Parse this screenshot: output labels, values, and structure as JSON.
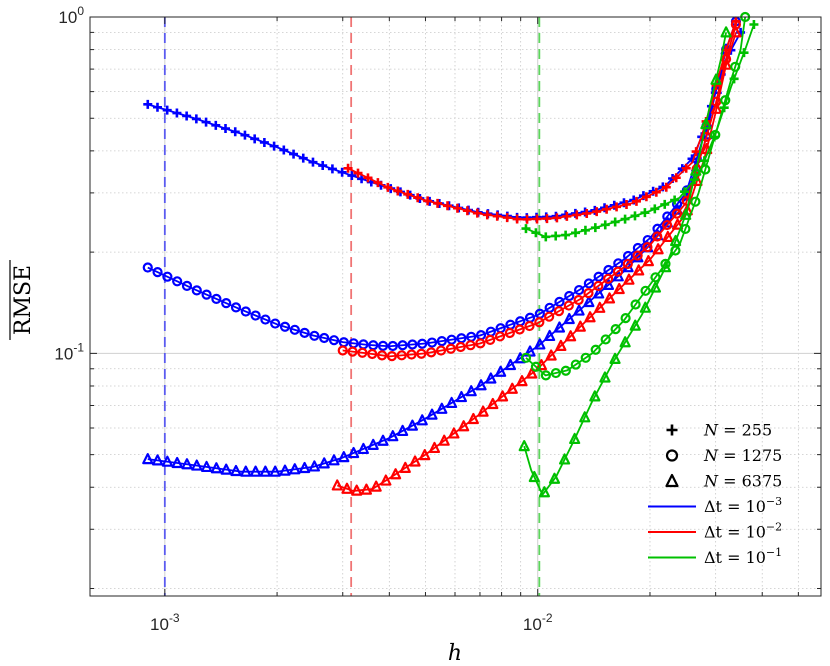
{
  "chart_data": {
    "type": "line",
    "xscale": "log",
    "yscale": "log",
    "xlabel": "h",
    "ylabel": "RMSE",
    "ylabel_overline": true,
    "xlim": [
      0.00063,
      0.0575
    ],
    "ylim": [
      0.019,
      1.0
    ],
    "grid": true,
    "grid_style": "dotted",
    "legend_position": "lower-right",
    "x_ticks": [
      {
        "value": 0.001,
        "base": "10",
        "exp": "-3"
      },
      {
        "value": 0.01,
        "base": "10",
        "exp": "-2"
      }
    ],
    "y_ticks": [
      {
        "value": 0.1,
        "base": "10",
        "exp": "-1"
      },
      {
        "value": 1,
        "base": "10",
        "exp": "0"
      }
    ],
    "reference_lines": [
      {
        "x": 0.001,
        "color": "#5b5bf0",
        "style": "dashed"
      },
      {
        "x": 0.00316,
        "color": "#f07474",
        "style": "dashed"
      },
      {
        "x": 0.0101,
        "color": "#5cd65c",
        "style": "dashed"
      }
    ],
    "colors": {
      "dt_1e-3": "#0000ff",
      "dt_1e-2": "#ff0000",
      "dt_1e-1": "#00c000"
    },
    "legend": [
      {
        "kind": "marker",
        "marker": "plus",
        "label_var": "N",
        "label_rest": " = 255"
      },
      {
        "kind": "marker",
        "marker": "circle",
        "label_var": "N",
        "label_rest": " = 1275"
      },
      {
        "kind": "marker",
        "marker": "triangle",
        "label_var": "N",
        "label_rest": " = 6375"
      },
      {
        "kind": "line",
        "color": "#0000ff",
        "label_var": "Δt",
        "label_rest": " = 10",
        "label_exp": "−3"
      },
      {
        "kind": "line",
        "color": "#ff0000",
        "label_var": "Δt",
        "label_rest": " = 10",
        "label_exp": "−2"
      },
      {
        "kind": "line",
        "color": "#00c000",
        "label_var": "Δt",
        "label_rest": " = 10",
        "label_exp": "−1"
      }
    ],
    "series": [
      {
        "dt": "1e-3",
        "N": 255,
        "marker": "plus",
        "color": "#0000ff",
        "points": [
          [
            0.0009,
            0.55
          ],
          [
            0.0012,
            0.5
          ],
          [
            0.0016,
            0.45
          ],
          [
            0.002,
            0.41
          ],
          [
            0.0025,
            0.37
          ],
          [
            0.003,
            0.345
          ],
          [
            0.004,
            0.31
          ],
          [
            0.005,
            0.285
          ],
          [
            0.007,
            0.262
          ],
          [
            0.009,
            0.253
          ],
          [
            0.011,
            0.255
          ],
          [
            0.014,
            0.265
          ],
          [
            0.018,
            0.285
          ],
          [
            0.022,
            0.315
          ],
          [
            0.026,
            0.38
          ],
          [
            0.028,
            0.46
          ],
          [
            0.03,
            0.6
          ],
          [
            0.032,
            0.75
          ],
          [
            0.035,
            0.9
          ]
        ]
      },
      {
        "dt": "1e-3",
        "N": 1275,
        "marker": "circle",
        "color": "#0000ff",
        "points": [
          [
            0.0009,
            0.18
          ],
          [
            0.0012,
            0.155
          ],
          [
            0.0016,
            0.135
          ],
          [
            0.002,
            0.122
          ],
          [
            0.0025,
            0.113
          ],
          [
            0.003,
            0.108
          ],
          [
            0.0035,
            0.106
          ],
          [
            0.004,
            0.105
          ],
          [
            0.005,
            0.107
          ],
          [
            0.007,
            0.113
          ],
          [
            0.01,
            0.13
          ],
          [
            0.013,
            0.155
          ],
          [
            0.017,
            0.19
          ],
          [
            0.02,
            0.22
          ],
          [
            0.025,
            0.3
          ],
          [
            0.028,
            0.45
          ],
          [
            0.03,
            0.6
          ],
          [
            0.032,
            0.8
          ],
          [
            0.034,
            0.97
          ]
        ]
      },
      {
        "dt": "1e-3",
        "N": 6375,
        "marker": "triangle",
        "color": "#0000ff",
        "points": [
          [
            0.0009,
            0.0485
          ],
          [
            0.0012,
            0.0465
          ],
          [
            0.0016,
            0.0445
          ],
          [
            0.002,
            0.0445
          ],
          [
            0.0025,
            0.046
          ],
          [
            0.003,
            0.049
          ],
          [
            0.004,
            0.056
          ],
          [
            0.005,
            0.064
          ],
          [
            0.007,
            0.08
          ],
          [
            0.01,
            0.105
          ],
          [
            0.013,
            0.135
          ],
          [
            0.017,
            0.175
          ],
          [
            0.02,
            0.21
          ],
          [
            0.025,
            0.29
          ],
          [
            0.028,
            0.42
          ],
          [
            0.03,
            0.6
          ],
          [
            0.032,
            0.8
          ]
        ]
      },
      {
        "dt": "1e-2",
        "N": 255,
        "marker": "plus",
        "color": "#ff0000",
        "points": [
          [
            0.0031,
            0.355
          ],
          [
            0.004,
            0.31
          ],
          [
            0.005,
            0.285
          ],
          [
            0.007,
            0.26
          ],
          [
            0.009,
            0.25
          ],
          [
            0.011,
            0.252
          ],
          [
            0.014,
            0.262
          ],
          [
            0.018,
            0.28
          ],
          [
            0.022,
            0.31
          ],
          [
            0.026,
            0.37
          ],
          [
            0.028,
            0.47
          ],
          [
            0.03,
            0.62
          ],
          [
            0.032,
            0.8
          ],
          [
            0.034,
            0.97
          ]
        ]
      },
      {
        "dt": "1e-2",
        "N": 1275,
        "marker": "circle",
        "color": "#ff0000",
        "points": [
          [
            0.003,
            0.102
          ],
          [
            0.0035,
            0.1
          ],
          [
            0.004,
            0.098
          ],
          [
            0.005,
            0.1
          ],
          [
            0.007,
            0.107
          ],
          [
            0.01,
            0.123
          ],
          [
            0.013,
            0.145
          ],
          [
            0.017,
            0.18
          ],
          [
            0.02,
            0.21
          ],
          [
            0.025,
            0.28
          ],
          [
            0.028,
            0.42
          ],
          [
            0.03,
            0.55
          ],
          [
            0.032,
            0.75
          ],
          [
            0.034,
            0.95
          ]
        ]
      },
      {
        "dt": "1e-2",
        "N": 6375,
        "marker": "triangle",
        "color": "#ff0000",
        "points": [
          [
            0.0029,
            0.0405
          ],
          [
            0.0032,
            0.039
          ],
          [
            0.0036,
            0.0395
          ],
          [
            0.004,
            0.0425
          ],
          [
            0.005,
            0.05
          ],
          [
            0.007,
            0.066
          ],
          [
            0.01,
            0.09
          ],
          [
            0.013,
            0.12
          ],
          [
            0.017,
            0.16
          ],
          [
            0.02,
            0.19
          ],
          [
            0.025,
            0.26
          ],
          [
            0.028,
            0.38
          ],
          [
            0.03,
            0.52
          ],
          [
            0.032,
            0.72
          ],
          [
            0.034,
            0.9
          ]
        ]
      },
      {
        "dt": "1e-1",
        "N": 255,
        "marker": "plus",
        "color": "#00c000",
        "points": [
          [
            0.0093,
            0.235
          ],
          [
            0.0105,
            0.222
          ],
          [
            0.012,
            0.225
          ],
          [
            0.014,
            0.235
          ],
          [
            0.017,
            0.25
          ],
          [
            0.02,
            0.265
          ],
          [
            0.024,
            0.29
          ],
          [
            0.027,
            0.34
          ],
          [
            0.03,
            0.45
          ],
          [
            0.033,
            0.62
          ],
          [
            0.036,
            0.8
          ],
          [
            0.038,
            0.95
          ]
        ]
      },
      {
        "dt": "1e-1",
        "N": 1275,
        "marker": "circle",
        "color": "#00c000",
        "points": [
          [
            0.0093,
            0.097
          ],
          [
            0.0105,
            0.086
          ],
          [
            0.012,
            0.089
          ],
          [
            0.014,
            0.1
          ],
          [
            0.017,
            0.125
          ],
          [
            0.02,
            0.16
          ],
          [
            0.024,
            0.21
          ],
          [
            0.027,
            0.3
          ],
          [
            0.03,
            0.45
          ],
          [
            0.033,
            0.65
          ],
          [
            0.035,
            0.8
          ],
          [
            0.036,
            1.0
          ]
        ]
      },
      {
        "dt": "1e-1",
        "N": 6375,
        "marker": "triangle",
        "color": "#00c000",
        "points": [
          [
            0.0092,
            0.053
          ],
          [
            0.0096,
            0.045
          ],
          [
            0.0103,
            0.038
          ],
          [
            0.0112,
            0.043
          ],
          [
            0.0125,
            0.055
          ],
          [
            0.014,
            0.072
          ],
          [
            0.016,
            0.095
          ],
          [
            0.019,
            0.13
          ],
          [
            0.022,
            0.18
          ],
          [
            0.025,
            0.26
          ],
          [
            0.027,
            0.38
          ],
          [
            0.029,
            0.55
          ],
          [
            0.031,
            0.75
          ],
          [
            0.032,
            0.9
          ]
        ]
      }
    ]
  }
}
